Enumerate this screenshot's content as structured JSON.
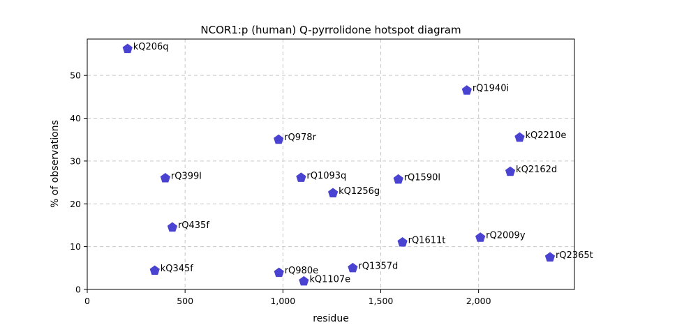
{
  "chart_data": {
    "type": "scatter",
    "title": "NCOR1:p (human) Q-pyrrolidone hotspot diagram",
    "xlabel": "residue",
    "ylabel": "% of observations",
    "xlim": [
      0,
      2490
    ],
    "ylim": [
      0,
      58.5
    ],
    "xticks": [
      0,
      500,
      1000,
      1500,
      2000
    ],
    "xtick_labels": [
      "0",
      "500",
      "1,000",
      "1,500",
      "2,000"
    ],
    "yticks": [
      0,
      10,
      20,
      30,
      40,
      50
    ],
    "ytick_labels": [
      "0",
      "10",
      "20",
      "30",
      "40",
      "50"
    ],
    "grid": true,
    "marker": "pentagon",
    "color": "#4a43d1",
    "points": [
      {
        "label": "kQ206q",
        "x": 206,
        "y": 56.2
      },
      {
        "label": "rQ1940i",
        "x": 1940,
        "y": 46.5
      },
      {
        "label": "kQ2210e",
        "x": 2210,
        "y": 35.5
      },
      {
        "label": "rQ978r",
        "x": 978,
        "y": 35.0
      },
      {
        "label": "kQ2162d",
        "x": 2162,
        "y": 27.5
      },
      {
        "label": "rQ1093q",
        "x": 1093,
        "y": 26.1
      },
      {
        "label": "rQ399l",
        "x": 399,
        "y": 26.0
      },
      {
        "label": "rQ1590l",
        "x": 1590,
        "y": 25.7
      },
      {
        "label": "kQ1256g",
        "x": 1256,
        "y": 22.5
      },
      {
        "label": "rQ435f",
        "x": 435,
        "y": 14.5
      },
      {
        "label": "rQ2009y",
        "x": 2009,
        "y": 12.1
      },
      {
        "label": "rQ1611t",
        "x": 1611,
        "y": 11.0
      },
      {
        "label": "rQ2365t",
        "x": 2365,
        "y": 7.5
      },
      {
        "label": "rQ1357d",
        "x": 1357,
        "y": 5.0
      },
      {
        "label": "kQ345f",
        "x": 345,
        "y": 4.4
      },
      {
        "label": "rQ980e",
        "x": 980,
        "y": 3.9
      },
      {
        "label": "kQ1107e",
        "x": 1107,
        "y": 1.9
      }
    ]
  }
}
